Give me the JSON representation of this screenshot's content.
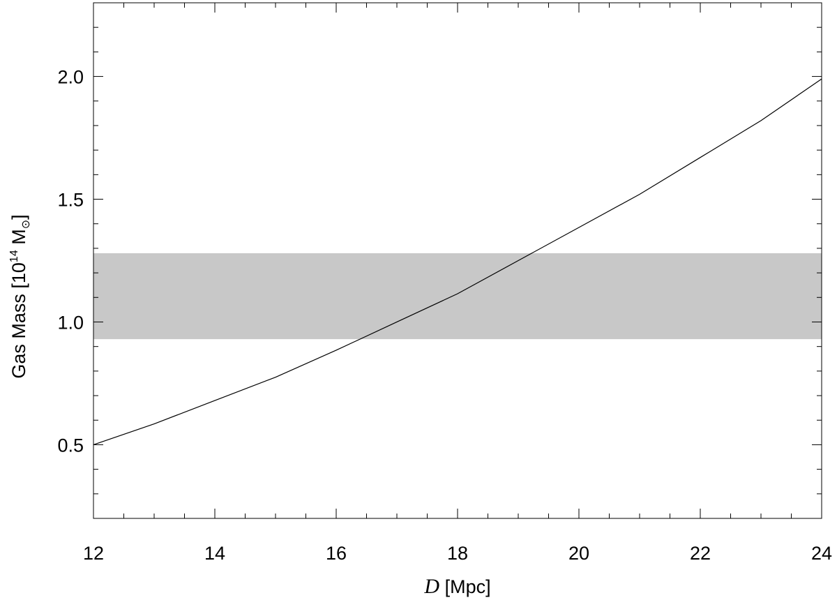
{
  "chart_data": {
    "type": "line",
    "xlabel": {
      "symbol": "D",
      "unit": "[Mpc]"
    },
    "ylabel": {
      "text": "Gas Mass [10",
      "superscript": "14",
      "unit": " M",
      "subscript": "⊙",
      "close": "]"
    },
    "x": [
      12,
      13,
      14,
      15,
      16,
      17,
      18,
      19,
      20,
      21,
      22,
      23,
      24
    ],
    "series": [
      {
        "color": "#000000",
        "values": [
          0.5,
          0.585,
          0.68,
          0.775,
          0.885,
          1.0,
          1.115,
          1.25,
          1.385,
          1.52,
          1.67,
          1.82,
          1.99
        ]
      }
    ],
    "band": [
      0.93,
      1.28
    ],
    "band_color": "#c8c8c8",
    "xlim": [
      12,
      24
    ],
    "ylim": [
      0.2,
      2.3
    ],
    "xticks": [
      12,
      14,
      16,
      18,
      20,
      22,
      24
    ],
    "yticks": [
      {
        "value": 0.5,
        "label": "0.5"
      },
      {
        "value": 1,
        "label": "1.0"
      },
      {
        "value": 1.5,
        "label": "1.5"
      },
      {
        "value": 2,
        "label": "2.0"
      }
    ],
    "xminorticks": [
      12.5,
      13,
      13.5,
      14.5,
      15,
      15.5,
      16.5,
      17,
      17.5,
      18.5,
      19,
      19.5,
      20.5,
      21,
      21.5,
      22.5,
      23,
      23.5
    ],
    "yminorticks": [
      0.3,
      0.4,
      0.6,
      0.7,
      0.8,
      0.9,
      1.1,
      1.2,
      1.3,
      1.4,
      1.6,
      1.7,
      1.8,
      1.9,
      2.1,
      2.2
    ],
    "grid": false
  }
}
